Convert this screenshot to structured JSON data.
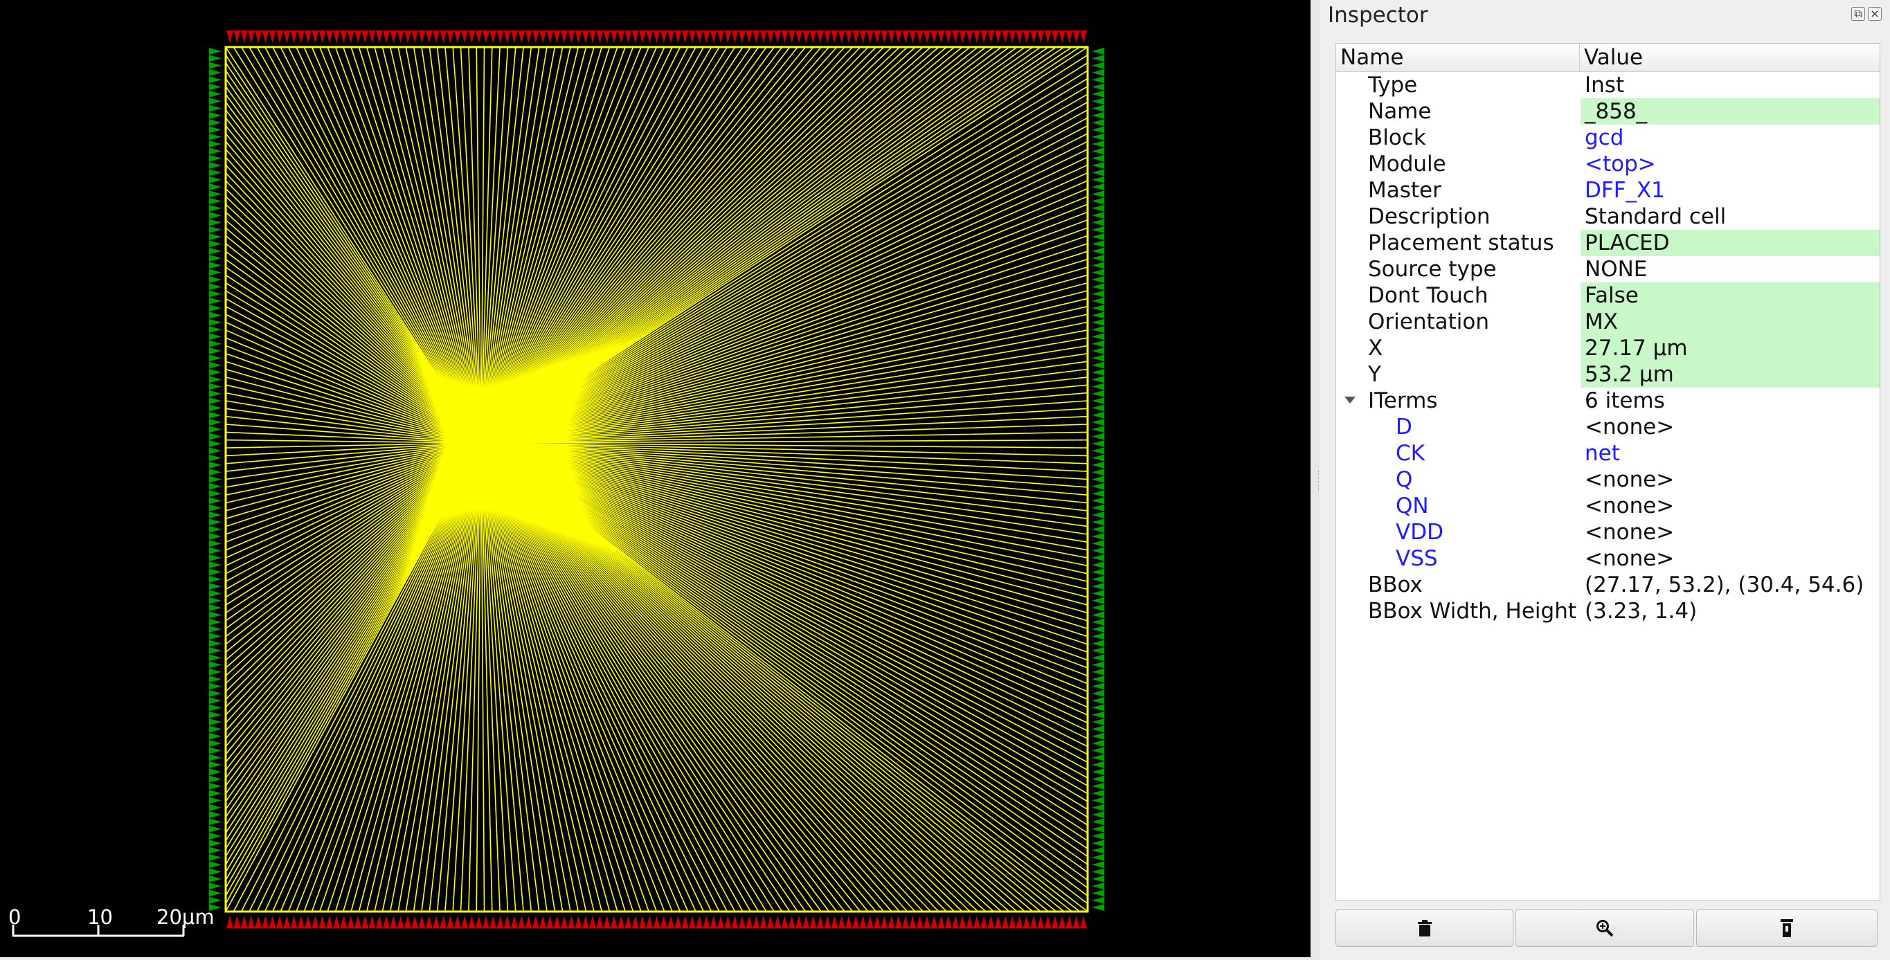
{
  "scale_bar": {
    "label_0": "0",
    "label_10": "10",
    "label_20": "20μm"
  },
  "inspector": {
    "title": "Inspector",
    "float_icon": "float-icon",
    "close_icon": "close-icon",
    "columns": {
      "name": "Name",
      "value": "Value"
    },
    "rows": [
      {
        "name": "Type",
        "value": "Inst",
        "highlight": false,
        "link": false
      },
      {
        "name": "Name",
        "value": "_858_",
        "highlight": true,
        "link": false
      },
      {
        "name": "Block",
        "value": "gcd",
        "highlight": false,
        "link": true
      },
      {
        "name": "Module",
        "value": "<top>",
        "highlight": false,
        "link": true
      },
      {
        "name": "Master",
        "value": "DFF_X1",
        "highlight": false,
        "link": true
      },
      {
        "name": "Description",
        "value": "Standard cell",
        "highlight": false,
        "link": false
      },
      {
        "name": "Placement status",
        "value": "PLACED",
        "highlight": true,
        "link": false
      },
      {
        "name": "Source type",
        "value": "NONE",
        "highlight": false,
        "link": false
      },
      {
        "name": "Dont Touch",
        "value": "False",
        "highlight": true,
        "link": false
      },
      {
        "name": "Orientation",
        "value": "MX",
        "highlight": true,
        "link": false
      },
      {
        "name": "X",
        "value": "27.17 μm",
        "highlight": true,
        "link": false
      },
      {
        "name": "Y",
        "value": "53.2 μm",
        "highlight": true,
        "link": false
      }
    ],
    "iterms": {
      "name": "ITerms",
      "value": "6 items",
      "expanded": true,
      "children": [
        {
          "name": "D",
          "value": "<none>",
          "link": false
        },
        {
          "name": "CK",
          "value": "net",
          "link": true
        },
        {
          "name": "Q",
          "value": "<none>",
          "link": false
        },
        {
          "name": "QN",
          "value": "<none>",
          "link": false
        },
        {
          "name": "VDD",
          "value": "<none>",
          "link": false
        },
        {
          "name": "VSS",
          "value": "<none>",
          "link": false
        }
      ]
    },
    "tail_rows": [
      {
        "name": "BBox",
        "value": "(27.17, 53.2), (30.4, 54.6)"
      },
      {
        "name": "BBox Width, Height",
        "value": "(3.23, 1.4)"
      }
    ],
    "buttons": [
      {
        "name": "delete-button",
        "icon": "trash-icon"
      },
      {
        "name": "zoom-to-button",
        "icon": "zoom-icon"
      },
      {
        "name": "highlight-button",
        "icon": "highlighter-icon"
      }
    ]
  },
  "colors": {
    "net": "#ffff00",
    "pin_top_bottom": "#cc0000",
    "pin_sides": "#00a000",
    "highlight": "#c8f7c8",
    "link": "#1d1dff"
  }
}
